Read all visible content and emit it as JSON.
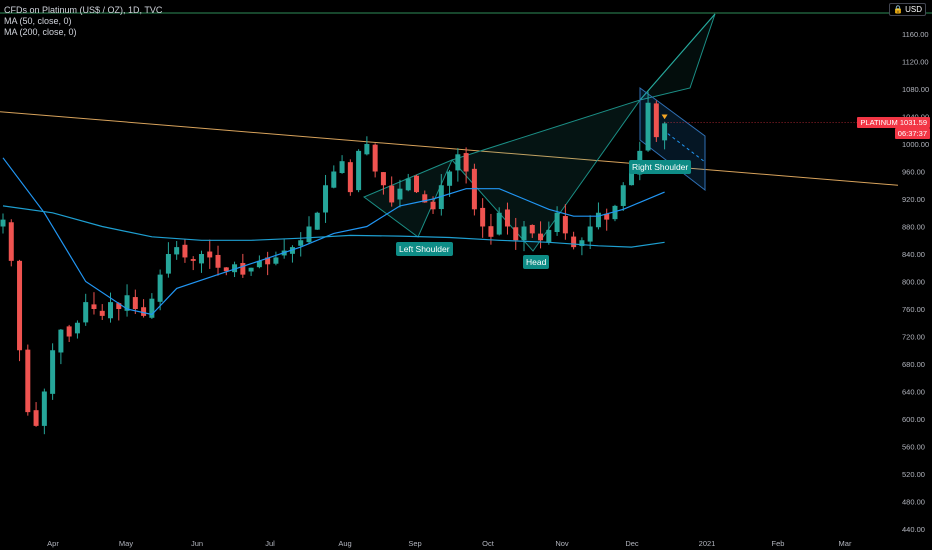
{
  "header": {
    "symbol_line": "CFDs on Platinum (US$ / OZ), 1D, TVC",
    "ma50_label": "MA (50, close, 0)",
    "ma200_label": "MA (200, close, 0)",
    "currency": "USD",
    "lock_icon": "lock-icon"
  },
  "price_badges": {
    "symbol": "PLATINUM",
    "last_price": "1031.59",
    "countdown": "06:37:37"
  },
  "annotations": {
    "left_shoulder": "Left Shoulder",
    "head": "Head",
    "right_shoulder": "Right Shoulder"
  },
  "colors": {
    "up": "#26a69a",
    "down": "#ef5350",
    "ma50": "#2196f3",
    "ma200": "#1e9fd1",
    "trendline": "#d8a35c",
    "neckline_top": "#2e8b57",
    "label_bg": "#0e8c86",
    "badge_red": "#f23645",
    "axis_text": "#b2b5be"
  },
  "chart_data": {
    "type": "candlestick",
    "title": "CFDs on Platinum (US$ / OZ), 1D, TVC",
    "ylim": [
      430,
      1200
    ],
    "y_ticks": [
      440,
      480,
      520,
      560,
      600,
      640,
      680,
      720,
      760,
      800,
      840,
      880,
      920,
      960,
      1000,
      1040,
      1080,
      1120,
      1160
    ],
    "x_ticks": [
      "Apr",
      "May",
      "Jun",
      "Jul",
      "Aug",
      "Sep",
      "Oct",
      "Nov",
      "Dec",
      "2021",
      "Feb",
      "Mar"
    ],
    "last_price": 1031.59,
    "close_path": [
      [
        0,
        890
      ],
      [
        1,
        830
      ],
      [
        2,
        700
      ],
      [
        3,
        610
      ],
      [
        4,
        590
      ],
      [
        5,
        640
      ],
      [
        6,
        700
      ],
      [
        7,
        730
      ],
      [
        8,
        720
      ],
      [
        9,
        740
      ],
      [
        10,
        770
      ],
      [
        11,
        760
      ],
      [
        12,
        750
      ],
      [
        13,
        770
      ],
      [
        14,
        760
      ],
      [
        15,
        780
      ],
      [
        16,
        760
      ],
      [
        17,
        750
      ],
      [
        18,
        775
      ],
      [
        19,
        810
      ],
      [
        20,
        840
      ],
      [
        21,
        850
      ],
      [
        22,
        835
      ],
      [
        23,
        830
      ],
      [
        24,
        840
      ],
      [
        25,
        835
      ],
      [
        26,
        820
      ],
      [
        27,
        815
      ],
      [
        28,
        825
      ],
      [
        29,
        810
      ],
      [
        30,
        820
      ],
      [
        31,
        830
      ],
      [
        32,
        825
      ],
      [
        33,
        835
      ],
      [
        34,
        845
      ],
      [
        35,
        850
      ],
      [
        36,
        860
      ],
      [
        37,
        880
      ],
      [
        38,
        900
      ],
      [
        39,
        940
      ],
      [
        40,
        960
      ],
      [
        41,
        975
      ],
      [
        42,
        930
      ],
      [
        43,
        990
      ],
      [
        44,
        1000
      ],
      [
        45,
        960
      ],
      [
        46,
        940
      ],
      [
        47,
        915
      ],
      [
        48,
        935
      ],
      [
        49,
        950
      ],
      [
        50,
        930
      ],
      [
        51,
        915
      ],
      [
        52,
        905
      ],
      [
        53,
        940
      ],
      [
        54,
        960
      ],
      [
        55,
        985
      ],
      [
        56,
        960
      ],
      [
        57,
        905
      ],
      [
        58,
        880
      ],
      [
        59,
        865
      ],
      [
        60,
        900
      ],
      [
        61,
        880
      ],
      [
        62,
        860
      ],
      [
        63,
        880
      ],
      [
        64,
        870
      ],
      [
        65,
        860
      ],
      [
        66,
        875
      ],
      [
        67,
        900
      ],
      [
        68,
        870
      ],
      [
        69,
        850
      ],
      [
        70,
        860
      ],
      [
        71,
        880
      ],
      [
        72,
        900
      ],
      [
        73,
        890
      ],
      [
        74,
        910
      ],
      [
        75,
        940
      ],
      [
        76,
        960
      ],
      [
        77,
        990
      ],
      [
        78,
        1060
      ],
      [
        79,
        1010
      ],
      [
        80,
        1030
      ]
    ],
    "series": [
      {
        "name": "MA (50, close, 0)",
        "points": [
          [
            0,
            980
          ],
          [
            5,
            900
          ],
          [
            10,
            800
          ],
          [
            15,
            760
          ],
          [
            18,
            752
          ],
          [
            21,
            790
          ],
          [
            26,
            810
          ],
          [
            31,
            830
          ],
          [
            36,
            850
          ],
          [
            40,
            870
          ],
          [
            44,
            880
          ],
          [
            48,
            910
          ],
          [
            52,
            920
          ],
          [
            56,
            935
          ],
          [
            60,
            935
          ],
          [
            63,
            920
          ],
          [
            66,
            905
          ],
          [
            69,
            895
          ],
          [
            72,
            895
          ],
          [
            75,
            905
          ],
          [
            77,
            915
          ],
          [
            80,
            930
          ]
        ]
      },
      {
        "name": "MA (200, close, 0)",
        "points": [
          [
            0,
            910
          ],
          [
            6,
            900
          ],
          [
            12,
            880
          ],
          [
            18,
            865
          ],
          [
            24,
            860
          ],
          [
            30,
            860
          ],
          [
            36,
            863
          ],
          [
            42,
            867
          ],
          [
            48,
            866
          ],
          [
            54,
            864
          ],
          [
            60,
            860
          ],
          [
            66,
            857
          ],
          [
            72,
            852
          ],
          [
            76,
            850
          ],
          [
            80,
            857
          ]
        ]
      }
    ]
  }
}
